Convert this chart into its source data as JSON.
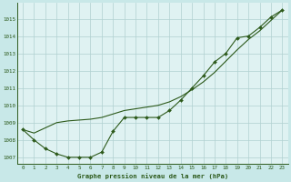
{
  "title": "Graphe pression niveau de la mer (hPa)",
  "bg_color": "#c8e8e8",
  "plot_bg_color": "#dff2f2",
  "grid_color": "#b0d0d0",
  "line_color": "#2d5a1b",
  "marker_color": "#2d5a1b",
  "xlim": [
    -0.5,
    23.5
  ],
  "ylim": [
    1006.6,
    1015.9
  ],
  "yticks": [
    1007,
    1008,
    1009,
    1010,
    1011,
    1012,
    1013,
    1014,
    1015
  ],
  "xticks": [
    0,
    1,
    2,
    3,
    4,
    5,
    6,
    7,
    8,
    9,
    10,
    11,
    12,
    13,
    14,
    15,
    16,
    17,
    18,
    19,
    20,
    21,
    22,
    23
  ],
  "series_marked_x": [
    0,
    1,
    2,
    3,
    4,
    5,
    6,
    7,
    8,
    9,
    10,
    11,
    12,
    13,
    14,
    15,
    16,
    17,
    18,
    19,
    20,
    21,
    22,
    23
  ],
  "series_marked_y": [
    1008.6,
    1008.0,
    1007.5,
    1007.2,
    1007.0,
    1007.0,
    1007.0,
    1007.3,
    1008.5,
    1009.3,
    1009.3,
    1009.3,
    1009.3,
    1009.7,
    1010.3,
    1011.0,
    1011.7,
    1012.5,
    1013.0,
    1013.9,
    1014.0,
    1014.5,
    1015.1,
    1015.5
  ],
  "series_smooth_x": [
    0,
    1,
    2,
    3,
    4,
    5,
    6,
    7,
    8,
    9,
    10,
    11,
    12,
    13,
    14,
    15,
    16,
    17,
    18,
    19,
    20,
    21,
    22,
    23
  ],
  "series_smooth_y": [
    1008.6,
    1008.4,
    1008.7,
    1009.0,
    1009.1,
    1009.15,
    1009.2,
    1009.3,
    1009.5,
    1009.7,
    1009.8,
    1009.9,
    1010.0,
    1010.2,
    1010.5,
    1010.9,
    1011.35,
    1011.9,
    1012.55,
    1013.2,
    1013.8,
    1014.3,
    1014.9,
    1015.5
  ]
}
